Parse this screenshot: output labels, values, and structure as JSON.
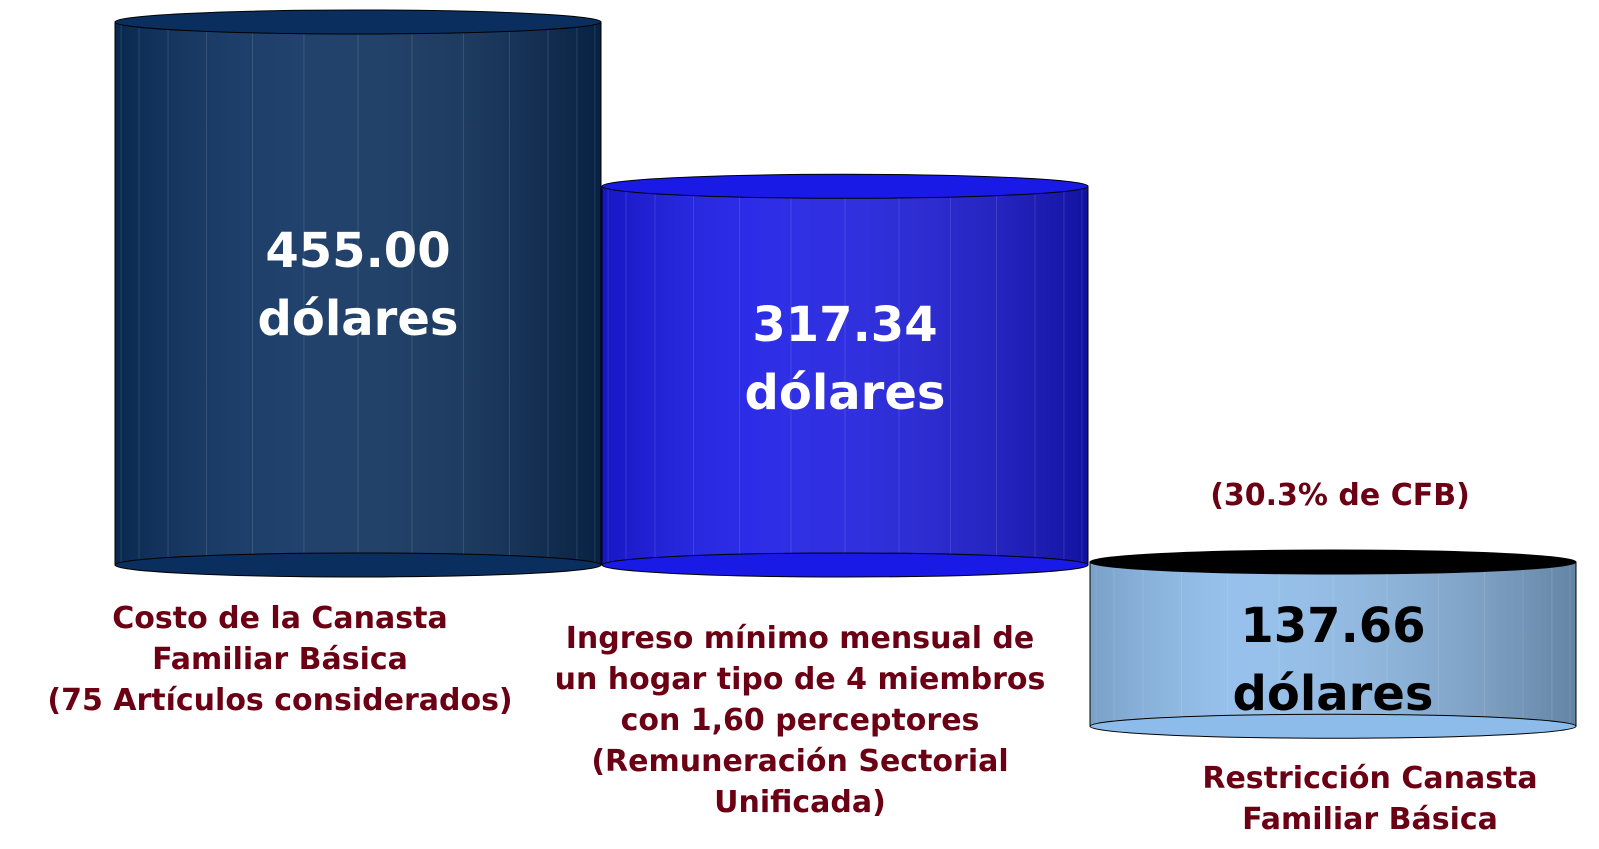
{
  "chart_data": {
    "type": "bar",
    "categories": [
      "Costo de la Canasta\nFamiliar Básica\n(75 Artículos considerados)",
      "Ingreso mínimo mensual de\nun hogar tipo de 4 miembros\ncon 1,60 perceptores\n(Remuneración Sectorial\nUnificada)",
      "Restricción Canasta\nFamiliar Básica"
    ],
    "values": [
      455,
      317.34,
      137.66
    ],
    "value_labels": [
      "455.00 dólares",
      "317.34 dólares",
      "137.66 dólares"
    ],
    "colors": [
      "#0a2f5e",
      "#1a1ae6",
      "#8ebcea"
    ],
    "annotation": "(30.3% de CFB)"
  }
}
